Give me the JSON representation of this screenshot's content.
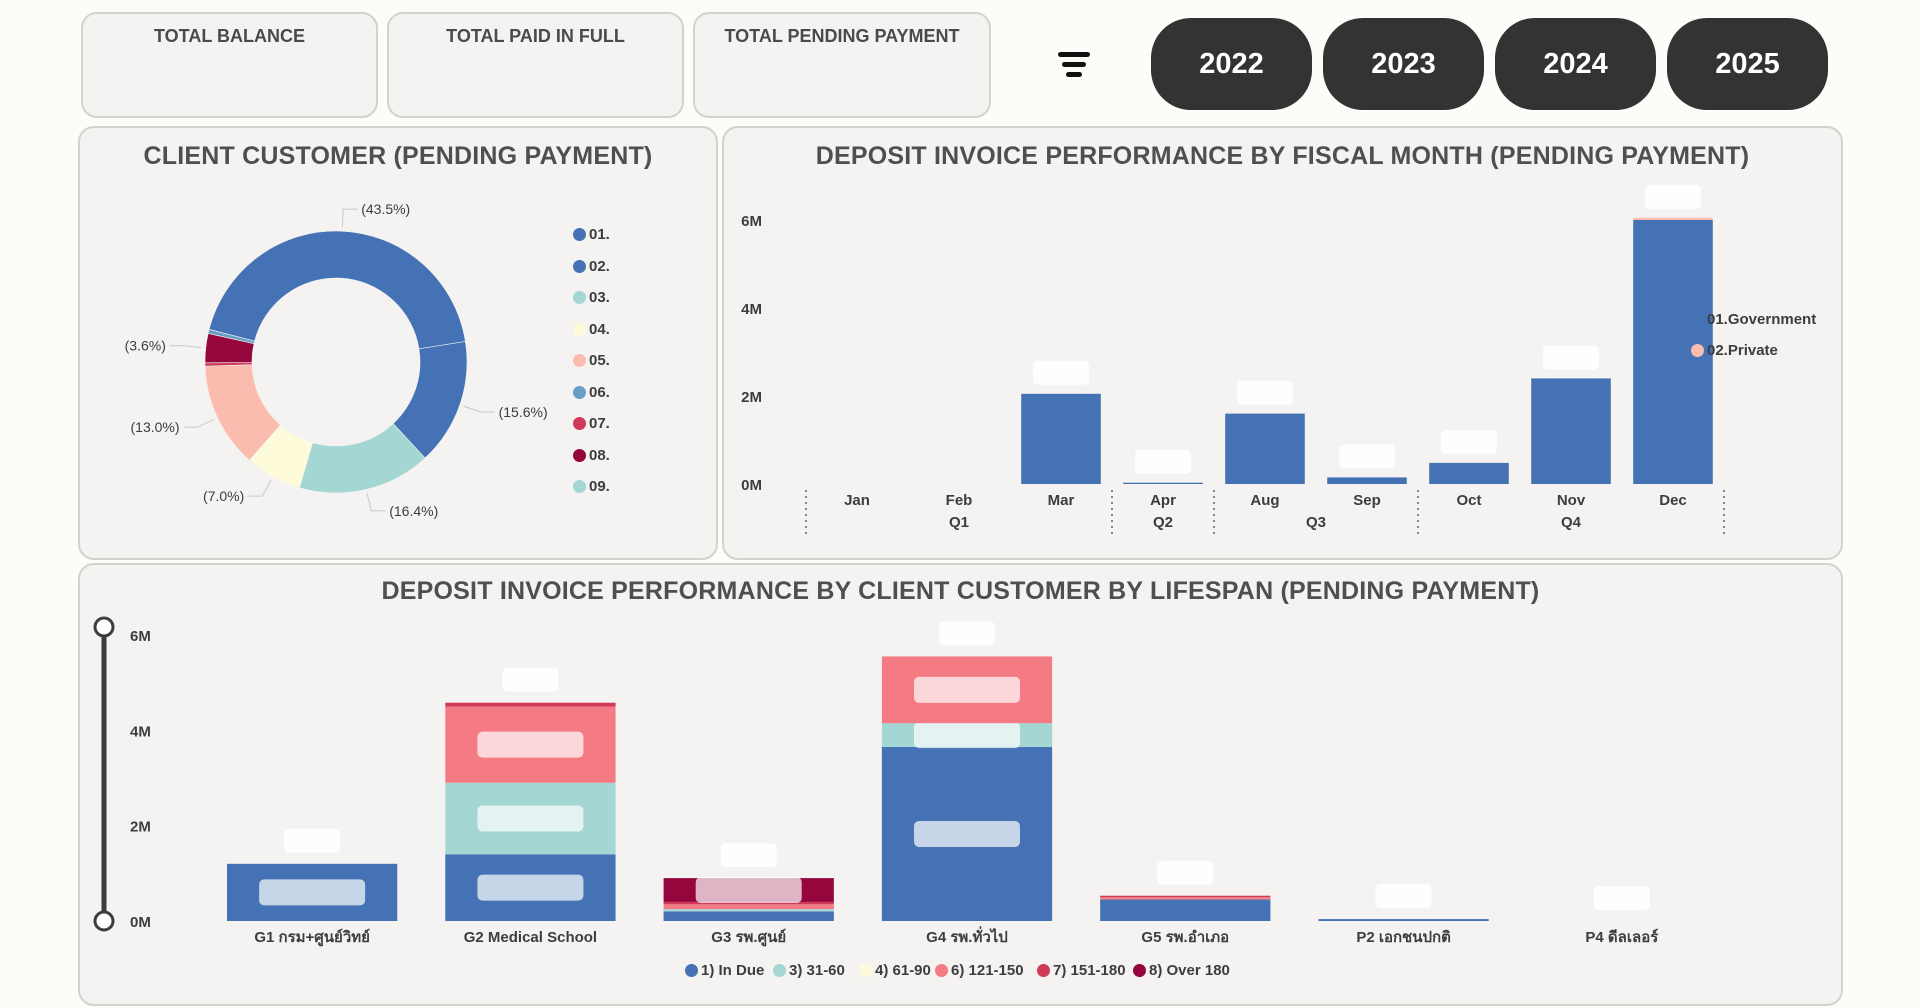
{
  "kpis": [
    {
      "label": "TOTAL BALANCE"
    },
    {
      "label": "TOTAL PAID IN FULL"
    },
    {
      "label": "TOTAL PENDING PAYMENT"
    }
  ],
  "filter": {
    "icon": "filter-icon"
  },
  "years": [
    "2022",
    "2023",
    "2024",
    "2025"
  ],
  "donut": {
    "title": "CLIENT CUSTOMER (PENDING PAYMENT)",
    "legend": [
      {
        "label": "01.",
        "color": "#4472b4"
      },
      {
        "label": "02.",
        "color": "#4472b4"
      },
      {
        "label": "03.",
        "color": "#a4d6d4"
      },
      {
        "label": "04.",
        "color": "#fdfbd9"
      },
      {
        "label": "05.",
        "color": "#fbbcb0"
      },
      {
        "label": "06.",
        "color": "#6a9ec4"
      },
      {
        "label": "07.",
        "color": "#ce3a58"
      },
      {
        "label": "08.",
        "color": "#95063c"
      },
      {
        "label": "09.",
        "color": "#a4d6d4"
      }
    ],
    "slices": [
      {
        "legend": "01.",
        "pct": 43.5,
        "label": "(43.5%)",
        "color": "#4472b4"
      },
      {
        "legend": "02.",
        "pct": 15.6,
        "label": "(15.6%)",
        "color": "#4472b4"
      },
      {
        "legend": "03.",
        "pct": 16.4,
        "label": "(16.4%)",
        "color": "#a4d6d4"
      },
      {
        "legend": "04.",
        "pct": 7.0,
        "label": "(7.0%)",
        "color": "#fdfbd9"
      },
      {
        "legend": "05.",
        "pct": 13.0,
        "label": "(13.0%)",
        "color": "#fbbcb0"
      },
      {
        "legend": "07.",
        "pct": 0.4,
        "label": "",
        "color": "#ce3a58"
      },
      {
        "legend": "08.",
        "pct": 3.6,
        "label": "(3.6%)",
        "color": "#95063c"
      },
      {
        "legend": "06.",
        "pct": 0.5,
        "label": "",
        "color": "#6a9ec4"
      }
    ]
  },
  "chart_data": [
    {
      "type": "bar",
      "title": "DEPOSIT INVOICE PERFORMANCE BY FISCAL MONTH (PENDING PAYMENT)",
      "categories": [
        "Jan",
        "Feb",
        "Mar",
        "Apr",
        "Aug",
        "Sep",
        "Oct",
        "Nov",
        "Dec"
      ],
      "quarters": [
        {
          "label": "Q1",
          "months": [
            "Jan",
            "Feb",
            "Mar"
          ]
        },
        {
          "label": "Q2",
          "months": [
            "Apr"
          ]
        },
        {
          "label": "Q3",
          "months": [
            "Aug",
            "Sep"
          ]
        },
        {
          "label": "Q4",
          "months": [
            "Oct",
            "Nov",
            "Dec"
          ]
        }
      ],
      "series": [
        {
          "name": "01.Government",
          "color": "#4472b4",
          "values": [
            0,
            0,
            2.05,
            0.03,
            1.6,
            0.15,
            0.48,
            2.4,
            6.0
          ]
        },
        {
          "name": "02.Private",
          "color": "#fbbcb0",
          "values": [
            0,
            0,
            0,
            0,
            0,
            0,
            0,
            0,
            0.05
          ]
        }
      ],
      "yticks": [
        "0M",
        "2M",
        "4M",
        "6M"
      ],
      "ylim": [
        0,
        6
      ],
      "legend_position": "right"
    },
    {
      "type": "bar",
      "stacked": true,
      "title": "DEPOSIT INVOICE PERFORMANCE BY CLIENT CUSTOMER BY LIFESPAN (PENDING PAYMENT)",
      "categories": [
        "G1 กรม+ศูนย์วิทย์",
        "G2 Medical School",
        "G3 รพ.ศูนย์",
        "G4 รพ.ทั่วไป",
        "G5 รพ.อำเภอ",
        "P2 เอกชนปกติ",
        "P4 ดีลเลอร์"
      ],
      "series": [
        {
          "name": "1) In Due",
          "color": "#4472b4",
          "values": [
            1.2,
            1.4,
            0.2,
            3.65,
            0.45,
            0.04,
            0.0
          ]
        },
        {
          "name": "3) 31-60",
          "color": "#a4d6d4",
          "values": [
            0,
            1.5,
            0.05,
            0.5,
            0,
            0,
            0
          ]
        },
        {
          "name": "4) 61-90",
          "color": "#fdfbd9",
          "values": [
            0,
            0,
            0,
            0,
            0,
            0,
            0
          ]
        },
        {
          "name": "6) 121-150",
          "color": "#f47b83",
          "values": [
            0,
            1.6,
            0.1,
            1.4,
            0.05,
            0,
            0
          ]
        },
        {
          "name": "7) 151-180",
          "color": "#ce3a58",
          "values": [
            0,
            0.08,
            0.05,
            0,
            0.03,
            0,
            0
          ]
        },
        {
          "name": "8) Over 180",
          "color": "#95063c",
          "values": [
            0,
            0,
            0.5,
            0,
            0,
            0,
            0
          ]
        }
      ],
      "yticks": [
        "0M",
        "2M",
        "4M",
        "6M"
      ],
      "ylim": [
        0,
        6
      ],
      "legend_position": "bottom"
    }
  ]
}
